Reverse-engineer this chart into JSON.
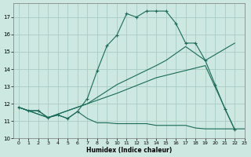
{
  "xlabel": "Humidex (Indice chaleur)",
  "bg_color": "#cce8e0",
  "grid_color": "#aaccC4",
  "line_color": "#1a6b5a",
  "xlim": [
    -0.5,
    23
  ],
  "ylim": [
    10,
    17.8
  ],
  "yticks": [
    10,
    11,
    12,
    13,
    14,
    15,
    16,
    17
  ],
  "xticks": [
    0,
    1,
    2,
    3,
    4,
    5,
    6,
    7,
    8,
    9,
    10,
    11,
    12,
    13,
    14,
    15,
    16,
    17,
    18,
    19,
    20,
    21,
    22,
    23
  ],
  "series_bottom_x": [
    0,
    1,
    2,
    3,
    4,
    5,
    6,
    7,
    8,
    9,
    10,
    11,
    12,
    13,
    14,
    15,
    16,
    17,
    18,
    19,
    20,
    21,
    22,
    23
  ],
  "series_bottom_y": [
    11.8,
    11.6,
    11.6,
    11.2,
    11.35,
    11.15,
    11.55,
    11.15,
    10.9,
    10.9,
    10.85,
    10.85,
    10.85,
    10.85,
    10.75,
    10.75,
    10.75,
    10.75,
    10.6,
    10.55,
    10.55,
    10.55,
    10.55,
    10.55
  ],
  "series_main_x": [
    0,
    1,
    2,
    3,
    4,
    5,
    6,
    7,
    8,
    9,
    10,
    11,
    12,
    13,
    14,
    15,
    16,
    17,
    18,
    19,
    20,
    21,
    22
  ],
  "series_main_y": [
    11.8,
    11.6,
    11.6,
    11.2,
    11.35,
    11.15,
    11.55,
    12.3,
    13.9,
    15.35,
    15.95,
    17.2,
    17.0,
    17.35,
    17.35,
    17.35,
    16.65,
    15.5,
    15.5,
    14.5,
    13.1,
    11.7,
    10.5
  ],
  "series_diag1_x": [
    0,
    3,
    7,
    10,
    14,
    15,
    17,
    19,
    22
  ],
  "series_diag1_y": [
    11.8,
    11.2,
    12.0,
    13.1,
    14.2,
    14.5,
    15.3,
    14.5,
    15.5
  ],
  "series_diag2_x": [
    0,
    3,
    7,
    10,
    14,
    19,
    22
  ],
  "series_diag2_y": [
    11.8,
    11.2,
    12.0,
    12.6,
    13.5,
    14.2,
    10.5
  ]
}
